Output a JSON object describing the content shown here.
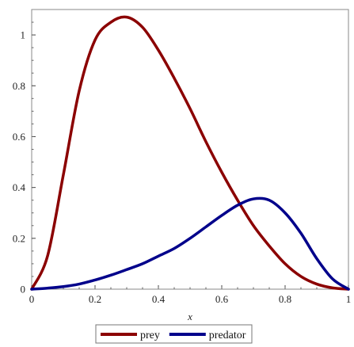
{
  "chart_data": {
    "type": "line",
    "xlabel": "x",
    "ylabel": "",
    "xlim": [
      0,
      1
    ],
    "ylim": [
      0,
      1.1
    ],
    "x_ticks": [
      "0",
      "0.2",
      "0.4",
      "0.6",
      "0.8",
      "1"
    ],
    "y_ticks": [
      "0",
      "0.2",
      "0.4",
      "0.6",
      "0.8",
      "1"
    ],
    "x_tick_values": [
      0,
      0.2,
      0.4,
      0.6,
      0.8,
      1
    ],
    "y_tick_values": [
      0,
      0.2,
      0.4,
      0.6,
      0.8,
      1
    ],
    "legend_position": "bottom",
    "series": [
      {
        "name": "prey",
        "color": "#8b0000",
        "x": [
          0,
          0.05,
          0.1,
          0.15,
          0.2,
          0.25,
          0.3,
          0.35,
          0.4,
          0.45,
          0.5,
          0.55,
          0.6,
          0.65,
          0.7,
          0.75,
          0.8,
          0.85,
          0.9,
          0.95,
          1
        ],
        "y": [
          0,
          0.13,
          0.45,
          0.78,
          0.98,
          1.05,
          1.07,
          1.03,
          0.94,
          0.83,
          0.71,
          0.58,
          0.46,
          0.35,
          0.25,
          0.17,
          0.1,
          0.05,
          0.02,
          0.005,
          0
        ]
      },
      {
        "name": "predator",
        "color": "#00008b",
        "x": [
          0,
          0.05,
          0.1,
          0.15,
          0.2,
          0.25,
          0.3,
          0.35,
          0.4,
          0.45,
          0.5,
          0.55,
          0.6,
          0.65,
          0.7,
          0.75,
          0.8,
          0.85,
          0.9,
          0.95,
          1
        ],
        "y": [
          0,
          0.004,
          0.01,
          0.02,
          0.036,
          0.055,
          0.077,
          0.1,
          0.13,
          0.16,
          0.2,
          0.245,
          0.29,
          0.33,
          0.355,
          0.35,
          0.3,
          0.22,
          0.12,
          0.04,
          0
        ]
      }
    ]
  }
}
